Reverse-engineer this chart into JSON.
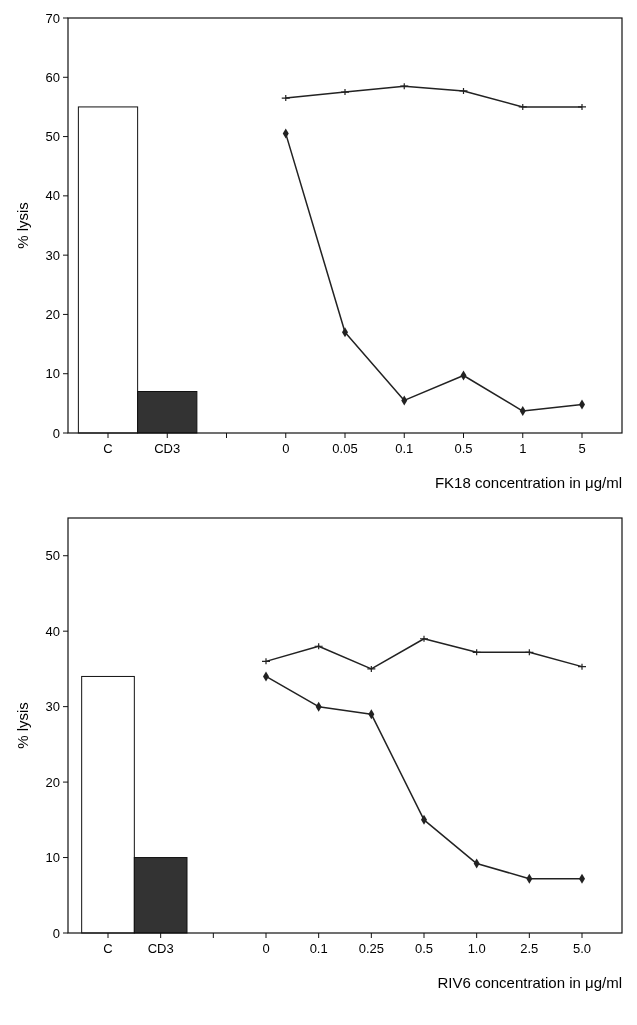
{
  "chart_data": [
    {
      "type": "line",
      "ylabel": "% lysis",
      "xlabel": "FK18 concentration in μg/ml",
      "categories": [
        "C",
        "CD3",
        null,
        "0",
        "0.05",
        "0.1",
        "0.5",
        "1",
        "5"
      ],
      "ylim": [
        0,
        70
      ],
      "yticks": [
        0,
        10,
        20,
        30,
        40,
        50,
        60,
        70
      ],
      "grid": false,
      "series": [
        {
          "type": "bar",
          "color": "#ffffff",
          "values": [
            55,
            null,
            null,
            null,
            null,
            null,
            null,
            null,
            null
          ]
        },
        {
          "type": "bar",
          "color": "#333333",
          "values": [
            null,
            7,
            null,
            null,
            null,
            null,
            null,
            null,
            null
          ]
        },
        {
          "color": "#222222",
          "marker": "cross",
          "values": [
            null,
            null,
            null,
            56.5,
            57.5,
            58.5,
            57.7,
            55,
            55
          ]
        },
        {
          "color": "#222222",
          "marker": "diamond",
          "values": [
            null,
            null,
            null,
            50.5,
            17,
            5.5,
            9.7,
            3.7,
            4.8
          ]
        }
      ]
    },
    {
      "type": "line",
      "ylabel": "% lysis",
      "xlabel": "RIV6 concentration in μg/ml",
      "categories": [
        "C",
        "CD3",
        null,
        "0",
        "0.1",
        "0.25",
        "0.5",
        "1.0",
        "2.5",
        "5.0"
      ],
      "ylim": [
        0,
        55
      ],
      "yticks": [
        0,
        10,
        20,
        30,
        40,
        50
      ],
      "grid": false,
      "series": [
        {
          "type": "bar",
          "color": "#ffffff",
          "values": [
            34,
            null,
            null,
            null,
            null,
            null,
            null,
            null,
            null,
            null
          ]
        },
        {
          "type": "bar",
          "color": "#333333",
          "values": [
            null,
            10,
            null,
            null,
            null,
            null,
            null,
            null,
            null,
            null
          ]
        },
        {
          "color": "#222222",
          "marker": "cross",
          "values": [
            null,
            null,
            null,
            36,
            38,
            35,
            39,
            37.2,
            37.2,
            35.3
          ]
        },
        {
          "color": "#222222",
          "marker": "diamond",
          "values": [
            null,
            null,
            null,
            34,
            30,
            29,
            15,
            9.2,
            7.2,
            7.2
          ]
        }
      ]
    }
  ]
}
